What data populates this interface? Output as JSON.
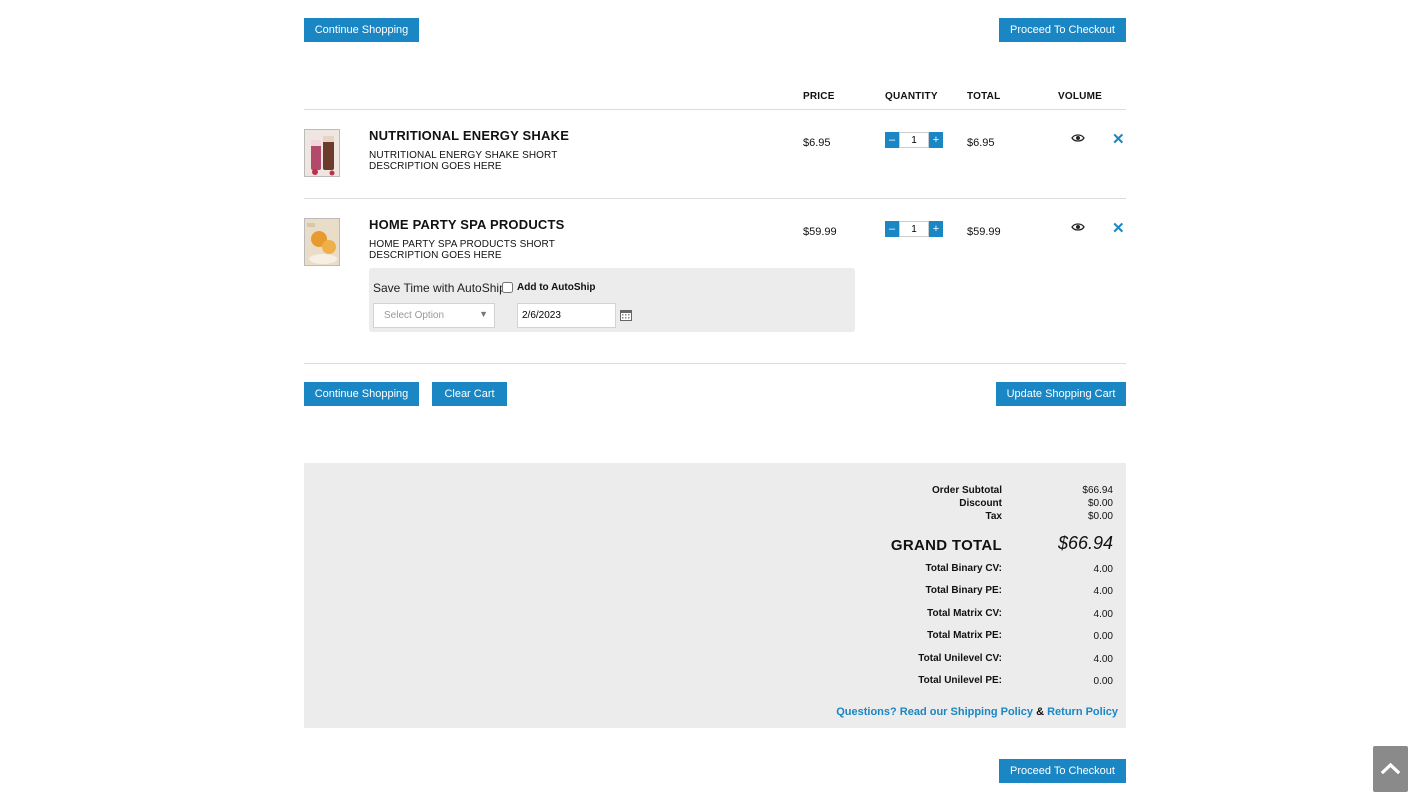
{
  "top_actions": {
    "continue_label": "Continue Shopping",
    "checkout_label": "Proceed To Checkout"
  },
  "table_headers": {
    "price": "PRICE",
    "quantity": "QUANTITY",
    "total": "TOTAL",
    "volume": "VOLUME"
  },
  "items": [
    {
      "name": "NUTRITIONAL ENERGY SHAKE",
      "description": "NUTRITIONAL ENERGY SHAKE SHORT DESCRIPTION GOES HERE",
      "price": "$6.95",
      "quantity": "1",
      "total": "$6.95",
      "volume_icon": "eye-icon",
      "remove_icon": "close-icon"
    },
    {
      "name": "HOME PARTY SPA PRODUCTS",
      "description": "HOME PARTY SPA PRODUCTS SHORT DESCRIPTION GOES HERE",
      "price": "$59.99",
      "quantity": "1",
      "total": "$59.99",
      "volume_icon": "eye-icon",
      "remove_icon": "close-icon"
    }
  ],
  "autoship": {
    "title": "Save Time with AutoShip",
    "checkbox_label": "Add to AutoShip",
    "checked": false,
    "select_placeholder": "Select Option",
    "date_value": "2/6/2023",
    "calendar_icon": "calendar-icon"
  },
  "cart_actions": {
    "continue_label": "Continue Shopping",
    "clear_label": "Clear Cart",
    "update_label": "Update Shopping Cart"
  },
  "summary": {
    "subtotal_label": "Order Subtotal",
    "subtotal_value": "$66.94",
    "discount_label": "Discount",
    "discount_value": "$0.00",
    "tax_label": "Tax",
    "tax_value": "$0.00",
    "grand_total_label": "GRAND TOTAL",
    "grand_total_value": "$66.94",
    "volumes": [
      {
        "label": "Total Binary CV:",
        "value": "4.00"
      },
      {
        "label": "Total Binary PE:",
        "value": "4.00"
      },
      {
        "label": "Total Matrix CV:",
        "value": "4.00"
      },
      {
        "label": "Total Matrix PE:",
        "value": "0.00"
      },
      {
        "label": "Total Unilevel CV:",
        "value": "4.00"
      },
      {
        "label": "Total Unilevel PE:",
        "value": "0.00"
      }
    ],
    "policy_prefix": "Questions? Read our Shipping Policy",
    "policy_amp": "&",
    "policy_return": "Return Policy"
  },
  "bottom_actions": {
    "checkout_label": "Proceed To Checkout"
  },
  "colors": {
    "accent": "#1a86c3",
    "panel": "#ececec",
    "scroll_button": "#8a8a8a"
  },
  "scroll_top_icon": "chevron-up-icon"
}
